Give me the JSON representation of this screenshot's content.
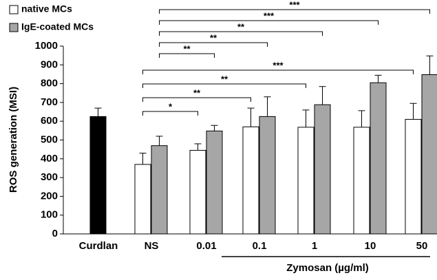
{
  "chart_data": {
    "type": "bar",
    "ylabel": "ROS generation (MSI)",
    "categories": [
      "Curdlan",
      "NS",
      "0.01",
      "0.1",
      "1",
      "10",
      "50"
    ],
    "group_label": "Zymosan (µg/ml)",
    "control": {
      "value": 625,
      "error": 45,
      "color": "#000000"
    },
    "series": [
      {
        "name": "native MCs",
        "color": "#ffffff",
        "values": [
          null,
          370,
          445,
          570,
          568,
          568,
          610
        ],
        "errors": [
          null,
          60,
          35,
          100,
          92,
          88,
          85
        ],
        "significance": [
          null,
          null,
          "*",
          "**",
          "**",
          null,
          "***"
        ]
      },
      {
        "name": "IgE-coated MCs",
        "color": "#a6a6a6",
        "values": [
          null,
          470,
          548,
          625,
          688,
          805,
          848
        ],
        "errors": [
          null,
          50,
          30,
          105,
          97,
          40,
          100
        ],
        "significance": [
          null,
          null,
          "**",
          "**",
          "**",
          "***",
          "***"
        ]
      }
    ],
    "ylim": [
      0,
      1000
    ],
    "yticks": [
      0,
      100,
      200,
      300,
      400,
      500,
      600,
      700,
      800,
      900,
      1000
    ]
  }
}
